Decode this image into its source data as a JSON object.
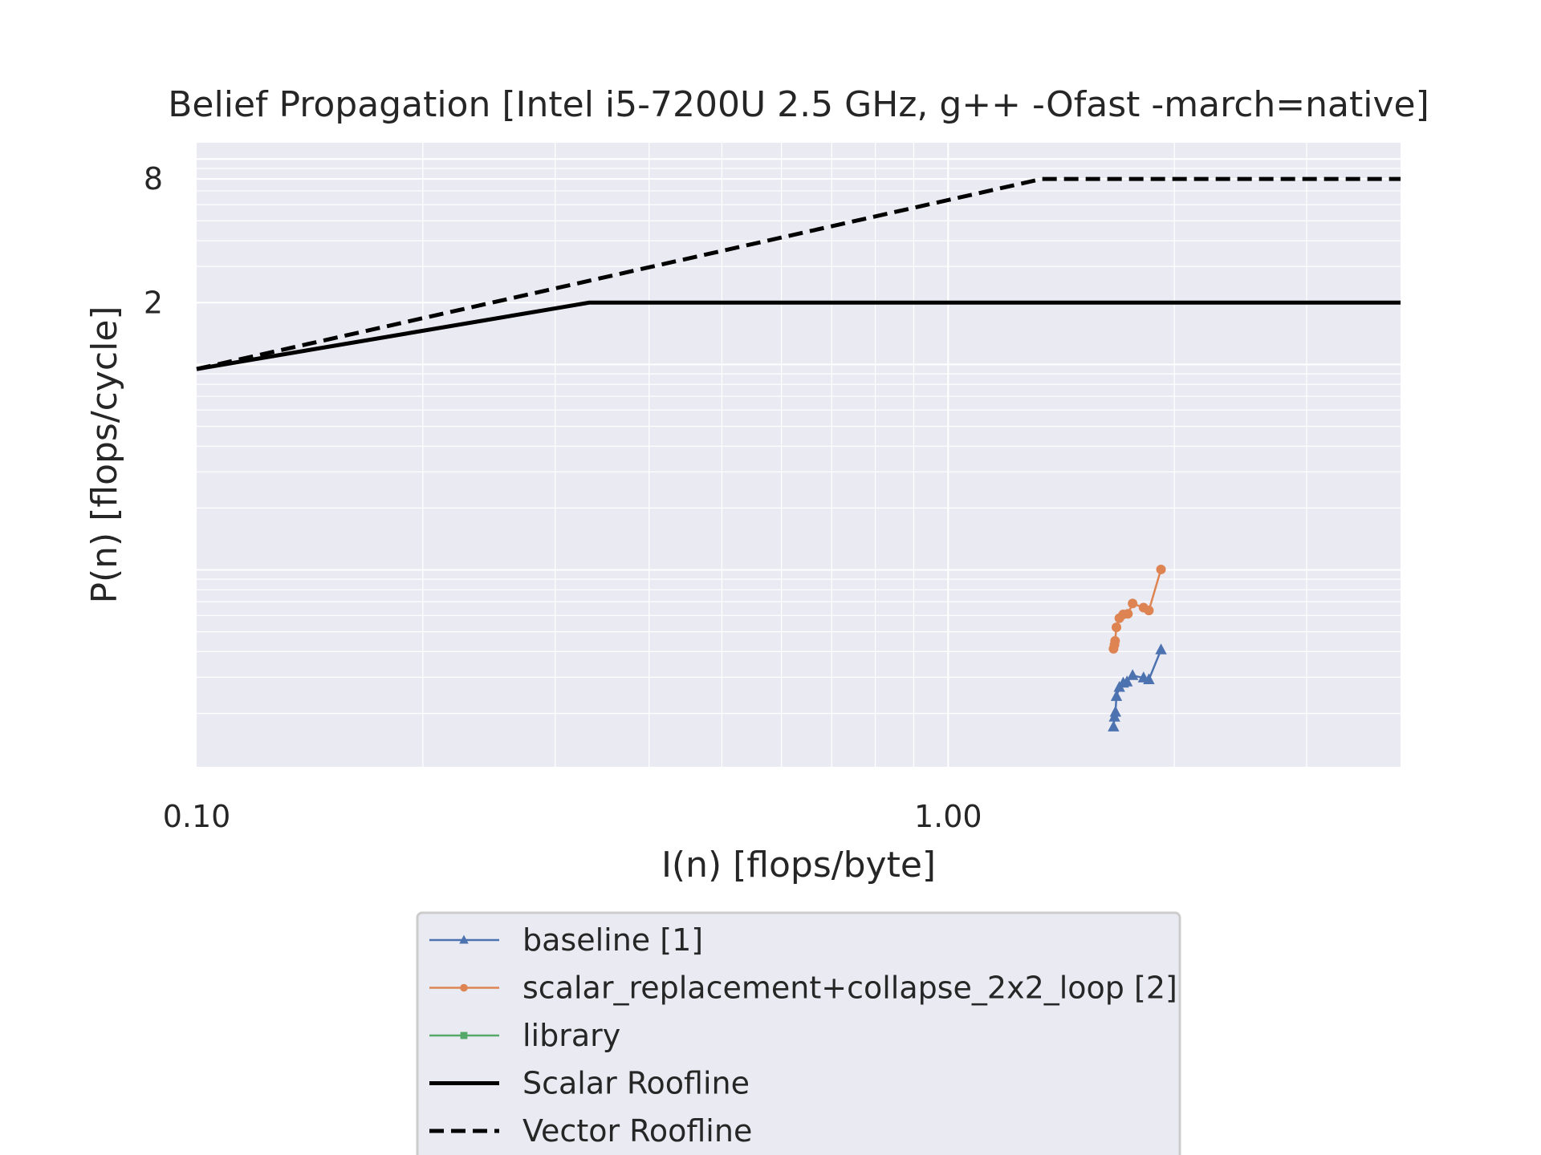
{
  "chart_data": {
    "type": "line",
    "title": "Belief Propagation [Intel i5-7200U 2.5 GHz, g++ -Ofast -march=native]",
    "xlabel": "I(n) [flops/byte]",
    "ylabel": "P(n) [flops/cycle]",
    "xscale": "log",
    "yscale": "log",
    "xlim": [
      0.1,
      4.0
    ],
    "ylim": [
      0.011,
      12
    ],
    "x_ticks": [
      {
        "value": 0.1,
        "label": "0.10"
      },
      {
        "value": 1.0,
        "label": "1.00"
      }
    ],
    "y_ticks": [
      {
        "value": 2,
        "label": "2"
      },
      {
        "value": 8,
        "label": "8"
      }
    ],
    "grid": true,
    "legend_position": "below",
    "series": [
      {
        "name": "baseline [1]",
        "color": "#4c72b0",
        "marker": "triangle",
        "line": "solid",
        "points": [
          [
            1.66,
            0.0172
          ],
          [
            1.665,
            0.0192
          ],
          [
            1.67,
            0.0203
          ],
          [
            1.675,
            0.0242
          ],
          [
            1.69,
            0.0268
          ],
          [
            1.71,
            0.0281
          ],
          [
            1.73,
            0.0285
          ],
          [
            1.76,
            0.0306
          ],
          [
            1.82,
            0.0298
          ],
          [
            1.85,
            0.0292
          ],
          [
            1.92,
            0.0408
          ]
        ]
      },
      {
        "name": "scalar_replacement+collapse_2x2_loop [2]",
        "color": "#dd8452",
        "marker": "circle",
        "line": "solid",
        "points": [
          [
            1.66,
            0.0413
          ],
          [
            1.665,
            0.0432
          ],
          [
            1.668,
            0.0451
          ],
          [
            1.675,
            0.0525
          ],
          [
            1.69,
            0.0582
          ],
          [
            1.71,
            0.0607
          ],
          [
            1.735,
            0.0611
          ],
          [
            1.76,
            0.0686
          ],
          [
            1.82,
            0.0655
          ],
          [
            1.85,
            0.0634
          ],
          [
            1.92,
            0.1005
          ]
        ]
      },
      {
        "name": "library",
        "color": "#55a868",
        "marker": "square",
        "line": "solid",
        "points": []
      },
      {
        "name": "Scalar Roofline",
        "color": "#000000",
        "marker": "none",
        "line": "solid",
        "points": [
          [
            0.1,
            0.95
          ],
          [
            0.333,
            2.0
          ],
          [
            4.0,
            2.0
          ]
        ]
      },
      {
        "name": "Vector Roofline",
        "color": "#000000",
        "marker": "none",
        "line": "dashed",
        "points": [
          [
            0.1,
            0.95
          ],
          [
            1.333,
            8.0
          ],
          [
            4.0,
            8.0
          ]
        ]
      }
    ]
  }
}
